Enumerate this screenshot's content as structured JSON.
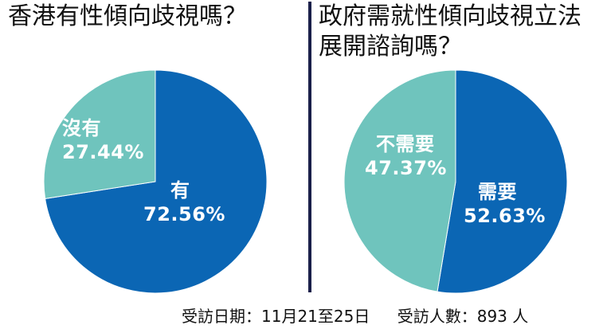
{
  "colors": {
    "dark_slice": "#0b66b4",
    "light_slice": "#6fc4bd",
    "divider": "#1a1f4a",
    "text": "#111111"
  },
  "chart_data": [
    {
      "type": "pie",
      "title": "香港有性傾向歧視嗎？",
      "slices": [
        {
          "label": "有",
          "value": 72.56,
          "display": "72.56%",
          "color": "#0b66b4"
        },
        {
          "label": "沒有",
          "value": 27.44,
          "display": "27.44%",
          "color": "#6fc4bd"
        }
      ]
    },
    {
      "type": "pie",
      "title": "政府需就性傾向歧視立法展開諮詢嗎？",
      "slices": [
        {
          "label": "需要",
          "value": 52.63,
          "display": "52.63%",
          "color": "#0b66b4"
        },
        {
          "label": "不需要",
          "value": 47.37,
          "display": "47.37%",
          "color": "#6fc4bd"
        }
      ]
    }
  ],
  "footer": {
    "period": "受訪日期：11月21至25日",
    "respondents": "受訪人數：893 人"
  }
}
